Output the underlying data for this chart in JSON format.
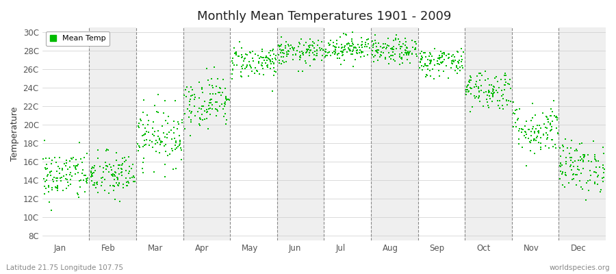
{
  "title": "Monthly Mean Temperatures 1901 - 2009",
  "ylabel": "Temperature",
  "xlabel_labels": [
    "Jan",
    "Feb",
    "Mar",
    "Apr",
    "May",
    "Jun",
    "Jul",
    "Aug",
    "Sep",
    "Oct",
    "Nov",
    "Dec"
  ],
  "subtitle_left": "Latitude 21.75 Longitude 107.75",
  "subtitle_right": "worldspecies.org",
  "legend_label": "Mean Temp",
  "dot_color": "#00bb00",
  "bg_color": "#ffffff",
  "band_color": "#efefef",
  "yticks": [
    8,
    10,
    12,
    14,
    16,
    18,
    20,
    22,
    24,
    26,
    28,
    30
  ],
  "ylim": [
    7.5,
    30.5
  ],
  "monthly_means": [
    14.5,
    14.5,
    18.8,
    22.5,
    26.8,
    27.8,
    28.3,
    27.9,
    26.8,
    23.8,
    19.5,
    15.5
  ],
  "monthly_stds": [
    1.4,
    1.3,
    1.6,
    1.4,
    0.9,
    0.7,
    0.7,
    0.7,
    0.8,
    1.1,
    1.4,
    1.4
  ],
  "n_years": 109,
  "seed": 42,
  "figsize": [
    9.0,
    4.0
  ],
  "dpi": 100
}
